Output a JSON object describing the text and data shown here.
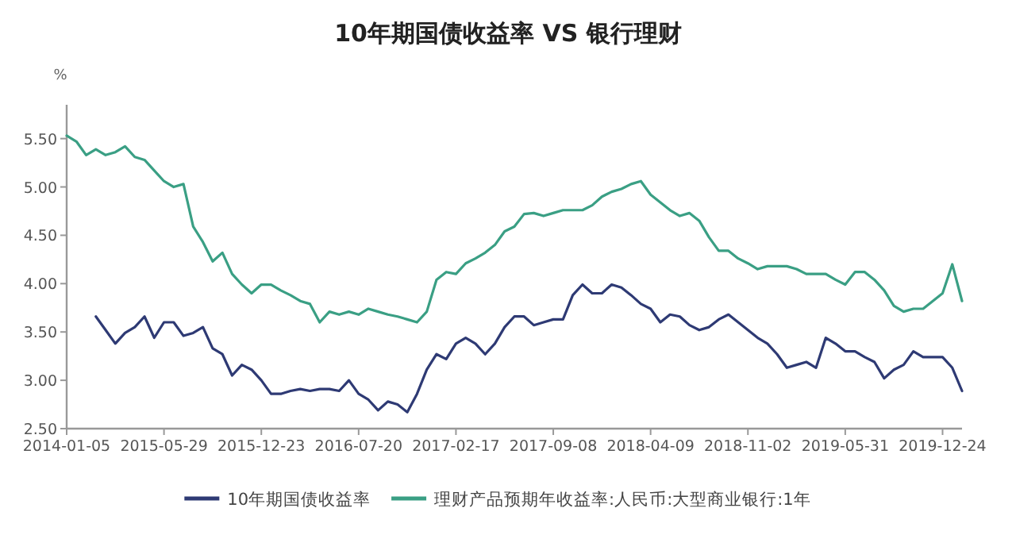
{
  "chart_data": {
    "type": "line",
    "title": "10年期国债收益率 VS 银行理财",
    "ylabel": "%",
    "categories": [
      "2014-01-05",
      null,
      null,
      null,
      null,
      null,
      null,
      null,
      null,
      null,
      "2015-05-29",
      null,
      null,
      null,
      null,
      null,
      null,
      null,
      null,
      null,
      "2015-12-23",
      null,
      null,
      null,
      null,
      null,
      null,
      null,
      null,
      null,
      "2016-07-20",
      null,
      null,
      null,
      null,
      null,
      null,
      null,
      null,
      null,
      "2017-02-17",
      null,
      null,
      null,
      null,
      null,
      null,
      null,
      null,
      null,
      "2017-09-08",
      null,
      null,
      null,
      null,
      null,
      null,
      null,
      null,
      null,
      "2018-04-09",
      null,
      null,
      null,
      null,
      null,
      null,
      null,
      null,
      null,
      "2018-11-02",
      null,
      null,
      null,
      null,
      null,
      null,
      null,
      null,
      null,
      "2019-05-31",
      null,
      null,
      null,
      null,
      null,
      null,
      null,
      null,
      null,
      "2019-12-24",
      null,
      null
    ],
    "series": [
      {
        "name": "10年期国债收益率",
        "color": "#2e3a74",
        "values": [
          null,
          null,
          null,
          3.66,
          3.52,
          3.38,
          3.49,
          3.55,
          3.66,
          3.44,
          3.6,
          3.6,
          3.46,
          3.49,
          3.55,
          3.33,
          3.27,
          3.05,
          3.16,
          3.11,
          3.0,
          2.86,
          2.86,
          2.89,
          2.91,
          2.89,
          2.91,
          2.91,
          2.89,
          3.0,
          2.86,
          2.8,
          2.69,
          2.78,
          2.75,
          2.67,
          2.86,
          3.11,
          3.27,
          3.22,
          3.38,
          3.44,
          3.38,
          3.27,
          3.38,
          3.55,
          3.66,
          3.66,
          3.57,
          3.6,
          3.63,
          3.63,
          3.88,
          3.99,
          3.9,
          3.9,
          3.99,
          3.96,
          3.88,
          3.79,
          3.74,
          3.6,
          3.68,
          3.66,
          3.57,
          3.52,
          3.55,
          3.63,
          3.68,
          3.6,
          3.52,
          3.44,
          3.38,
          3.27,
          3.13,
          3.16,
          3.19,
          3.13,
          3.44,
          3.38,
          3.3,
          3.3,
          3.24,
          3.19,
          3.02,
          3.11,
          3.16,
          3.3,
          3.24,
          3.24,
          3.24,
          3.13,
          2.89
        ]
      },
      {
        "name": "理财产品预期年收益率:人民币:大型商业银行:1年",
        "color": "#3a9f84",
        "values": [
          5.53,
          5.47,
          5.33,
          5.39,
          5.33,
          5.36,
          5.42,
          5.31,
          5.28,
          5.17,
          5.06,
          5.0,
          5.03,
          4.59,
          4.43,
          4.23,
          4.32,
          4.1,
          3.99,
          3.9,
          3.99,
          3.99,
          3.93,
          3.88,
          3.82,
          3.79,
          3.6,
          3.71,
          3.68,
          3.71,
          3.68,
          3.74,
          3.71,
          3.68,
          3.66,
          3.63,
          3.6,
          3.71,
          4.04,
          4.12,
          4.1,
          4.21,
          4.26,
          4.32,
          4.4,
          4.54,
          4.59,
          4.72,
          4.73,
          4.7,
          4.73,
          4.76,
          4.76,
          4.76,
          4.81,
          4.9,
          4.95,
          4.98,
          5.03,
          5.06,
          4.92,
          4.84,
          4.76,
          4.7,
          4.73,
          4.65,
          4.48,
          4.34,
          4.34,
          4.26,
          4.21,
          4.15,
          4.18,
          4.18,
          4.18,
          4.15,
          4.1,
          4.1,
          4.1,
          4.04,
          3.99,
          4.12,
          4.12,
          4.04,
          3.93,
          3.77,
          3.71,
          3.74,
          3.74,
          3.82,
          3.9,
          4.2,
          3.82
        ]
      }
    ],
    "ylim": [
      2.5,
      5.85
    ],
    "yticks": [
      {
        "value": 2.5,
        "label": "2.50"
      },
      {
        "value": 3,
        "label": "3.00"
      },
      {
        "value": 3.5,
        "label": "3.50"
      },
      {
        "value": 4,
        "label": "4.00"
      },
      {
        "value": 4.5,
        "label": "4.50"
      },
      {
        "value": 5,
        "label": "5.00"
      },
      {
        "value": 5.5,
        "label": "5.50"
      }
    ],
    "legend": "bottom",
    "grid": false,
    "marker": "none",
    "line_style": "solid"
  }
}
